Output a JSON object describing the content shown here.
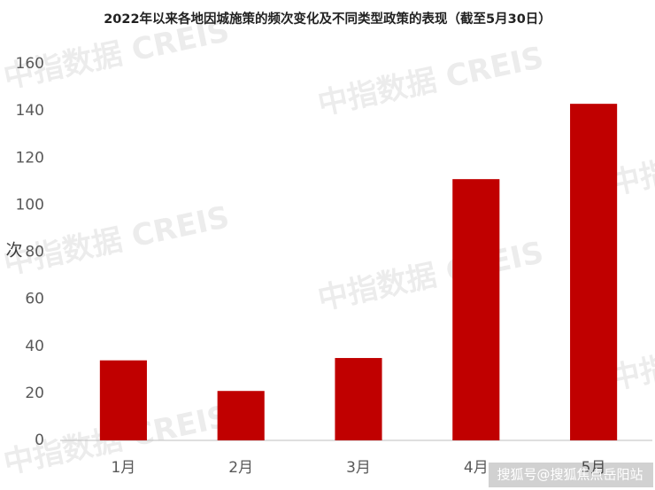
{
  "chart_data": {
    "type": "bar",
    "title": "2022年以来各地因城施策的频次变化及不同类型政策的表现（截至5月30日）",
    "y_label": "次",
    "categories": [
      "1月",
      "2月",
      "3月",
      "4月",
      "5月"
    ],
    "values": [
      34,
      21,
      35,
      111,
      143
    ],
    "color": "#c00000",
    "ylim": [
      0,
      160
    ],
    "yticks": [
      0,
      20,
      40,
      60,
      80,
      100,
      120,
      140,
      160
    ],
    "grid": false,
    "watermark": "中指数据 CREIS",
    "credit": "搜狐号@搜狐焦点岳阳站"
  }
}
